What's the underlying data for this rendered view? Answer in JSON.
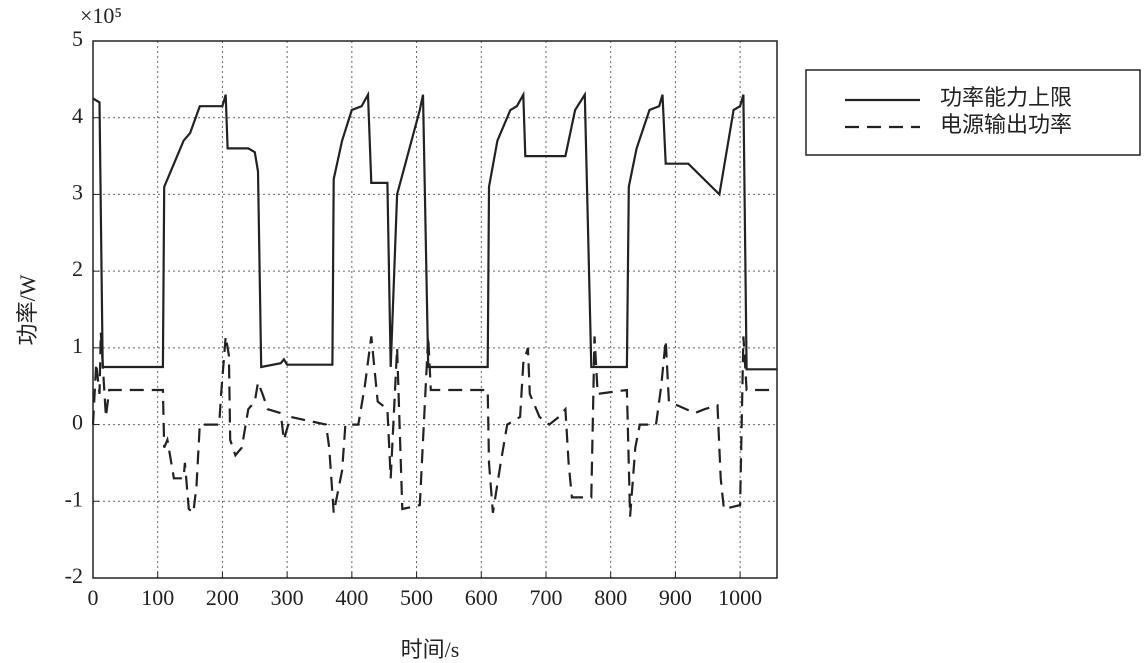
{
  "chart_data": {
    "type": "line",
    "x_label": "时间/s",
    "y_label": "功率/W",
    "y_multiplier": "×10⁵",
    "xlim": [
      0,
      1057
    ],
    "ylim": [
      -2,
      5
    ],
    "xticks": [
      0,
      100,
      200,
      300,
      400,
      500,
      600,
      700,
      800,
      900,
      1000
    ],
    "yticks": [
      -2,
      -1,
      0,
      1,
      2,
      3,
      4,
      5
    ],
    "grid": true,
    "legend": "outside-right",
    "series": [
      {
        "name": "功率能力上限",
        "color": "#222222",
        "dash": false,
        "x": [
          0,
          10,
          15,
          20,
          108,
          110,
          120,
          140,
          150,
          165,
          200,
          205,
          208,
          240,
          250,
          255,
          260,
          290,
          295,
          300,
          370,
          372,
          385,
          400,
          415,
          425,
          430,
          455,
          460,
          470,
          505,
          510,
          518,
          610,
          612,
          625,
          645,
          655,
          665,
          668,
          720,
          730,
          745,
          760,
          770,
          825,
          828,
          840,
          860,
          875,
          880,
          885,
          920,
          968,
          990,
          1000,
          1005,
          1010,
          1057
        ],
        "values": [
          4.25,
          4.2,
          0.75,
          0.75,
          0.75,
          3.1,
          3.3,
          3.7,
          3.8,
          4.15,
          4.15,
          4.3,
          3.6,
          3.6,
          3.55,
          3.3,
          0.75,
          0.8,
          0.85,
          0.78,
          0.78,
          3.2,
          3.7,
          4.1,
          4.15,
          4.3,
          3.15,
          3.15,
          0.75,
          3.0,
          4.1,
          4.3,
          0.75,
          0.75,
          3.1,
          3.7,
          4.1,
          4.15,
          4.3,
          3.5,
          3.5,
          3.5,
          4.1,
          4.3,
          0.75,
          0.75,
          3.1,
          3.6,
          4.1,
          4.15,
          4.3,
          3.4,
          3.4,
          3.0,
          4.1,
          4.15,
          4.3,
          0.72,
          0.72
        ]
      },
      {
        "name": "电源输出功率",
        "color": "#222222",
        "dash": true,
        "x": [
          0,
          5,
          10,
          12,
          20,
          25,
          108,
          110,
          115,
          125,
          140,
          142,
          148,
          155,
          160,
          165,
          195,
          198,
          205,
          210,
          212,
          220,
          230,
          240,
          250,
          255,
          262,
          270,
          290,
          295,
          305,
          360,
          365,
          372,
          385,
          390,
          410,
          420,
          430,
          440,
          455,
          460,
          470,
          478,
          505,
          518,
          522,
          610,
          612,
          618,
          630,
          640,
          660,
          665,
          672,
          675,
          690,
          705,
          720,
          730,
          735,
          740,
          770,
          775,
          780,
          825,
          830,
          838,
          845,
          870,
          878,
          885,
          890,
          930,
          945,
          965,
          970,
          975,
          1000,
          1005,
          1010,
          1057
        ],
        "values": [
          0,
          0.8,
          0.4,
          1.2,
          0.1,
          0.45,
          0.45,
          -0.3,
          -0.2,
          -0.7,
          -0.7,
          -0.5,
          -1.1,
          -1.15,
          -0.8,
          0,
          0,
          0.4,
          1.15,
          0.9,
          -0.2,
          -0.4,
          -0.3,
          0.2,
          0.3,
          0.55,
          0.4,
          0.2,
          0.15,
          -0.2,
          0.1,
          0,
          -0.3,
          -1.15,
          -0.6,
          0,
          0,
          0.5,
          1.15,
          0.3,
          0.2,
          -0.7,
          1.0,
          -1.1,
          -1.05,
          1.15,
          0.45,
          0.45,
          -0.5,
          -1.15,
          -0.5,
          0,
          0.1,
          0.8,
          1.0,
          0.4,
          0.1,
          0,
          0.1,
          0.2,
          -0.5,
          -0.95,
          -0.95,
          1.15,
          0.4,
          0.45,
          -1.2,
          -0.3,
          0,
          0,
          0.5,
          1.1,
          0.3,
          0.15,
          0.2,
          0.25,
          -0.7,
          -1.1,
          -1.05,
          1.15,
          0.45,
          0.45
        ]
      }
    ]
  }
}
